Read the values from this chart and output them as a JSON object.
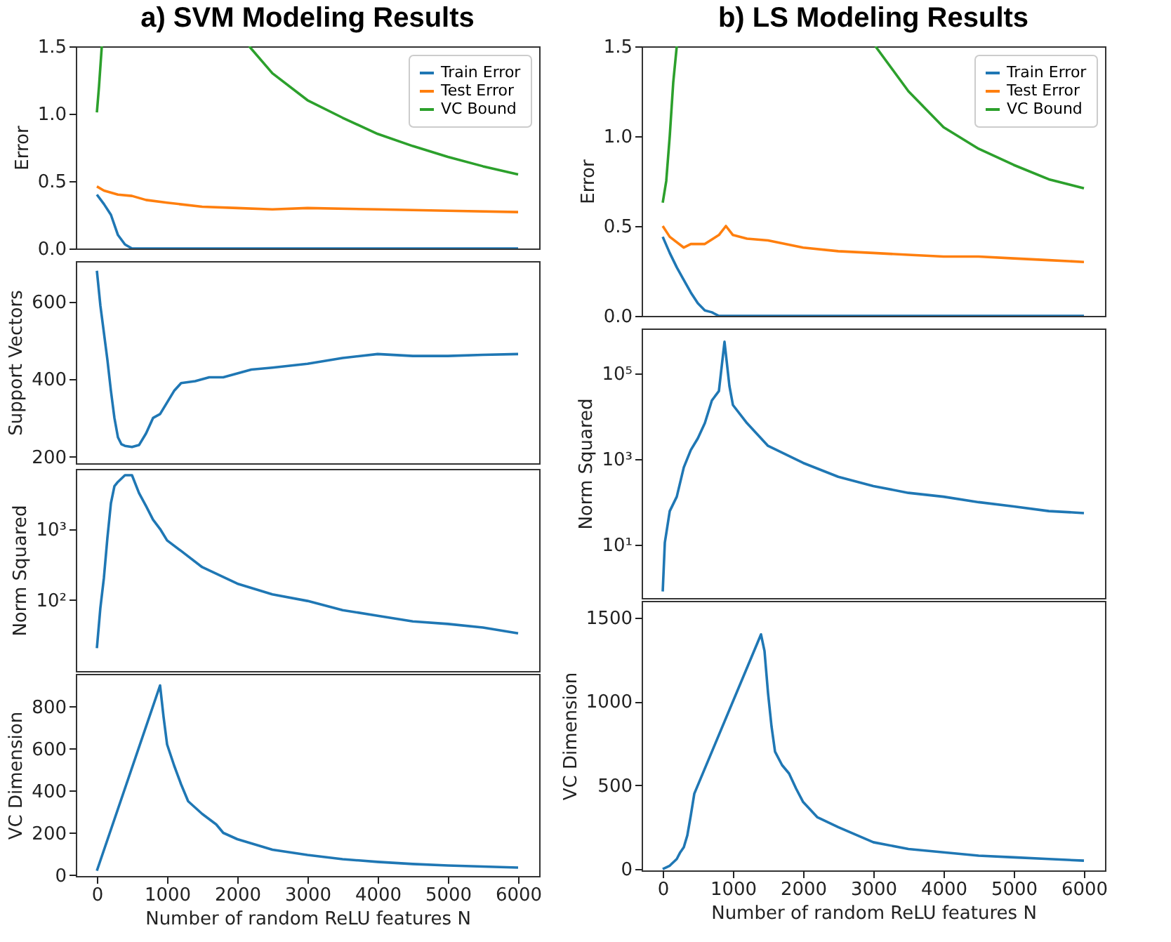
{
  "chart_data": [
    {
      "type": "line",
      "title": "a) SVM Modeling Results",
      "ylabel": "Error",
      "xlim": [
        -300,
        6300
      ],
      "xticks": [
        0,
        1000,
        2000,
        3000,
        4000,
        5000,
        6000
      ],
      "ylim": [
        0,
        1.5
      ],
      "yticks": [
        {
          "value": 0,
          "label": "0.0"
        },
        {
          "value": 0.5,
          "label": "0.5"
        },
        {
          "value": 1,
          "label": "1.0"
        },
        {
          "value": 1.5,
          "label": "1.5"
        }
      ],
      "tick_labels": "y",
      "legend": "top right",
      "series": [
        {
          "name": "Train Error",
          "color": "#1f77b4",
          "x": [
            0,
            100,
            200,
            300,
            400,
            500,
            6000
          ],
          "values": [
            0.4,
            0.33,
            0.25,
            0.1,
            0.03,
            0.0,
            0.0
          ]
        },
        {
          "name": "Test Error",
          "color": "#ff7f0e",
          "x": [
            0,
            100,
            300,
            500,
            700,
            1000,
            1500,
            2000,
            2500,
            3000,
            4000,
            5000,
            6000
          ],
          "values": [
            0.46,
            0.43,
            0.4,
            0.39,
            0.36,
            0.34,
            0.31,
            0.3,
            0.29,
            0.3,
            0.29,
            0.28,
            0.27
          ]
        },
        {
          "name": "VC Bound",
          "color": "#2ca02c",
          "x": [
            0,
            30,
            70,
            1000,
            2170,
            2500,
            3000,
            3500,
            4000,
            4500,
            5000,
            5500,
            6000
          ],
          "values": [
            1.01,
            1.2,
            1.5,
            null,
            1.5,
            1.3,
            1.1,
            0.97,
            0.85,
            0.76,
            0.68,
            0.61,
            0.55
          ]
        }
      ]
    },
    {
      "type": "line",
      "ylabel": "Support Vectors",
      "xlim": [
        -300,
        6300
      ],
      "xticks": [
        0,
        1000,
        2000,
        3000,
        4000,
        5000,
        6000
      ],
      "ylim": [
        183,
        705
      ],
      "yticks": [
        200,
        400,
        600
      ],
      "tick_labels": "y",
      "series": [
        {
          "color": "#1f77b4",
          "x": [
            0,
            50,
            100,
            150,
            200,
            250,
            300,
            350,
            400,
            500,
            600,
            700,
            800,
            900,
            1000,
            1100,
            1200,
            1400,
            1600,
            1800,
            2000,
            2200,
            2500,
            3000,
            3500,
            4000,
            4500,
            5000,
            5500,
            6000
          ],
          "values": [
            680,
            590,
            520,
            450,
            370,
            300,
            250,
            232,
            228,
            225,
            230,
            260,
            300,
            310,
            340,
            370,
            390,
            395,
            405,
            405,
            415,
            425,
            430,
            440,
            455,
            465,
            460,
            460,
            463,
            465
          ]
        }
      ]
    },
    {
      "type": "line",
      "ylabel": "Norm Squared",
      "log": true,
      "xlim": [
        -300,
        6300
      ],
      "xticks": [
        0,
        1000,
        2000,
        3000,
        4000,
        5000,
        6000
      ],
      "ylim": [
        10,
        7000
      ],
      "yticks": [
        {
          "value": 100,
          "label": "10²"
        },
        {
          "value": 1000,
          "label": "10³"
        }
      ],
      "tick_labels": "y",
      "series": [
        {
          "color": "#1f77b4",
          "x": [
            0,
            50,
            100,
            150,
            200,
            250,
            300,
            400,
            500,
            600,
            700,
            800,
            900,
            1000,
            1200,
            1500,
            2000,
            2500,
            3000,
            3500,
            4000,
            4500,
            5000,
            5500,
            6000
          ],
          "values": [
            21,
            78,
            205,
            750,
            2300,
            4000,
            4600,
            5700,
            5700,
            3200,
            2100,
            1350,
            1000,
            690,
            490,
            290,
            170,
            120,
            97,
            72,
            60,
            50,
            46,
            41,
            34
          ]
        }
      ]
    },
    {
      "type": "line",
      "ylabel": "VC Dimension",
      "xlabel": "Number of random ReLU features N",
      "xlim": [
        -300,
        6300
      ],
      "xticks": [
        0,
        1000,
        2000,
        3000,
        4000,
        5000,
        6000
      ],
      "ylim": [
        -5,
        955
      ],
      "yticks": [
        0,
        200,
        400,
        600,
        800
      ],
      "series": [
        {
          "color": "#1f77b4",
          "x": [
            0,
            900,
            950,
            1000,
            1100,
            1200,
            1300,
            1500,
            1700,
            1800,
            2000,
            2500,
            3000,
            3500,
            4000,
            4500,
            5000,
            5500,
            6000
          ],
          "values": [
            20,
            900,
            750,
            620,
            520,
            430,
            350,
            290,
            240,
            200,
            170,
            120,
            95,
            75,
            62,
            52,
            45,
            40,
            35
          ]
        }
      ]
    },
    {
      "type": "line",
      "title": "b) LS Modeling Results",
      "ylabel": "Error",
      "xlim": [
        -300,
        6300
      ],
      "xticks": [
        0,
        1000,
        2000,
        3000,
        4000,
        5000,
        6000
      ],
      "ylim": [
        0,
        1.5
      ],
      "yticks": [
        {
          "value": 0,
          "label": "0.0"
        },
        {
          "value": 0.5,
          "label": "0.5"
        },
        {
          "value": 1,
          "label": "1.0"
        },
        {
          "value": 1.5,
          "label": "1.5"
        }
      ],
      "tick_labels": "y",
      "legend": "top right",
      "series": [
        {
          "name": "Train Error",
          "color": "#1f77b4",
          "x": [
            0,
            100,
            200,
            300,
            400,
            500,
            600,
            700,
            800,
            6000
          ],
          "values": [
            0.44,
            0.35,
            0.27,
            0.2,
            0.13,
            0.07,
            0.03,
            0.02,
            0.0,
            0.0
          ]
        },
        {
          "name": "Test Error",
          "color": "#ff7f0e",
          "x": [
            0,
            100,
            300,
            400,
            600,
            800,
            900,
            1000,
            1200,
            1500,
            2000,
            2500,
            3000,
            3500,
            4000,
            4500,
            5000,
            5500,
            6000
          ],
          "values": [
            0.5,
            0.44,
            0.38,
            0.4,
            0.4,
            0.45,
            0.5,
            0.45,
            0.43,
            0.42,
            0.38,
            0.36,
            0.35,
            0.34,
            0.33,
            0.33,
            0.32,
            0.31,
            0.3
          ]
        },
        {
          "name": "VC Bound",
          "color": "#2ca02c",
          "x": [
            0,
            50,
            100,
            150,
            200,
            1500,
            3030,
            3500,
            4000,
            4500,
            5000,
            5500,
            6000
          ],
          "values": [
            0.63,
            0.75,
            1.0,
            1.3,
            1.5,
            null,
            1.5,
            1.25,
            1.05,
            0.93,
            0.84,
            0.76,
            0.71
          ]
        }
      ]
    },
    {
      "type": "line",
      "ylabel": "Norm Squared",
      "log": true,
      "xlim": [
        -300,
        6300
      ],
      "xticks": [
        0,
        1000,
        2000,
        3000,
        4000,
        5000,
        6000
      ],
      "ylim": [
        0.56,
        1100000
      ],
      "yticks": [
        {
          "value": 10,
          "label": "10¹"
        },
        {
          "value": 1000,
          "label": "10³"
        },
        {
          "value": 100000,
          "label": "10⁵"
        }
      ],
      "tick_labels": "y",
      "series": [
        {
          "color": "#1f77b4",
          "x": [
            0,
            30,
            100,
            200,
            300,
            400,
            500,
            600,
            700,
            800,
            880,
            950,
            1000,
            1200,
            1500,
            2000,
            2500,
            3000,
            3500,
            4000,
            4500,
            5000,
            5500,
            6000
          ],
          "values": [
            0.8,
            11,
            60,
            130,
            630,
            1600,
            3000,
            6800,
            23000,
            38000,
            540000,
            50000,
            18000,
            6800,
            2000,
            800,
            380,
            230,
            160,
            130,
            97,
            77,
            60,
            54
          ]
        }
      ]
    },
    {
      "type": "line",
      "ylabel": "VC Dimension",
      "xlabel": "Number of random ReLU features N",
      "xlim": [
        -300,
        6300
      ],
      "xticks": [
        0,
        1000,
        2000,
        3000,
        4000,
        5000,
        6000
      ],
      "ylim": [
        -8,
        1600
      ],
      "yticks": [
        0,
        500,
        1000,
        1500
      ],
      "series": [
        {
          "color": "#1f77b4",
          "x": [
            0,
            100,
            200,
            250,
            300,
            350,
            400,
            450,
            1400,
            1450,
            1500,
            1550,
            1600,
            1700,
            1800,
            1900,
            2000,
            2200,
            2500,
            3000,
            3500,
            4000,
            4500,
            5000,
            5500,
            6000
          ],
          "values": [
            0,
            20,
            60,
            100,
            130,
            200,
            320,
            450,
            1400,
            1300,
            1050,
            850,
            700,
            620,
            570,
            480,
            400,
            310,
            250,
            160,
            120,
            100,
            80,
            70,
            60,
            50
          ]
        }
      ]
    }
  ]
}
